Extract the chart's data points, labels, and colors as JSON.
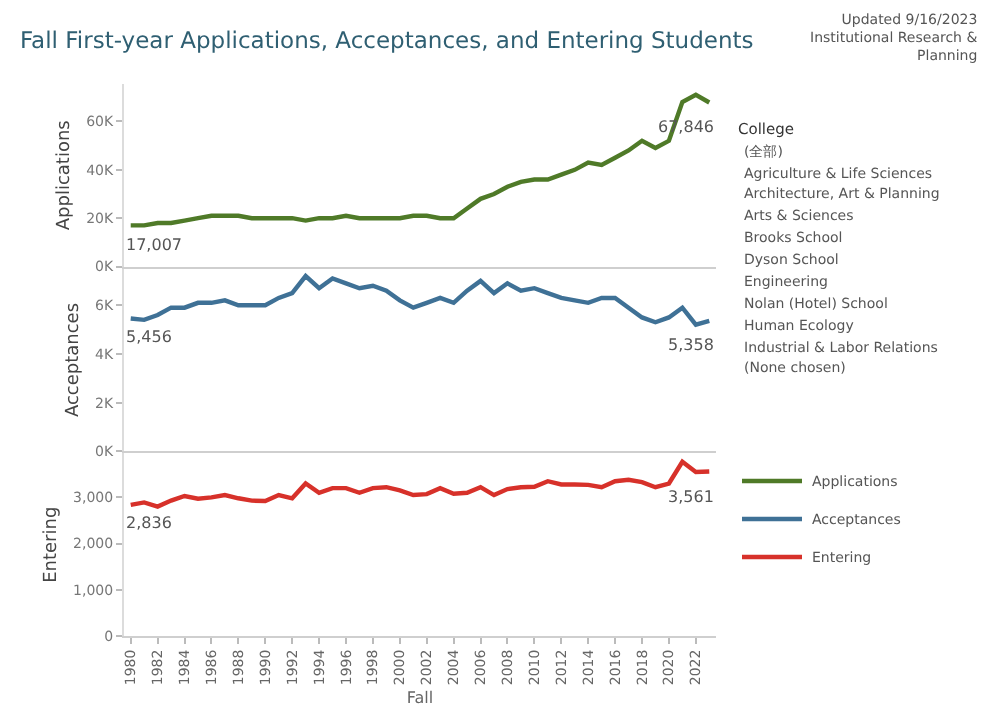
{
  "chart_data": [
    {
      "type": "line",
      "title": "Fall First-year Applications, Acceptances, and Entering Students",
      "ylabel": "Applications",
      "annotations": [
        "Updated 9/16/2023\nInstitutional Research &\nPlanning"
      ],
      "x": [
        1980,
        1981,
        1982,
        1983,
        1984,
        1985,
        1986,
        1987,
        1988,
        1989,
        1990,
        1991,
        1992,
        1993,
        1994,
        1995,
        1996,
        1997,
        1998,
        1999,
        2000,
        2001,
        2002,
        2003,
        2004,
        2005,
        2006,
        2007,
        2008,
        2009,
        2010,
        2011,
        2012,
        2013,
        2014,
        2015,
        2016,
        2017,
        2018,
        2019,
        2020,
        2021,
        2022,
        2023
      ],
      "xlim": [
        1979.5,
        2023.5
      ],
      "xticks": [
        1980,
        1982,
        1984,
        1986,
        1988,
        1990,
        1992,
        1994,
        1996,
        1998,
        2000,
        2002,
        2004,
        2006,
        2008,
        2010,
        2012,
        2014,
        2016,
        2018,
        2020,
        2022
      ],
      "ylim": [
        0,
        75500
      ],
      "yticks": [
        {
          "value": 0,
          "label": "0K"
        },
        {
          "value": 20000,
          "label": "20K"
        },
        {
          "value": 40000,
          "label": "40K"
        },
        {
          "value": 60000,
          "label": "60K"
        }
      ],
      "tick_labels": "y",
      "legend": "right",
      "series": [
        {
          "name": "Applications",
          "color": "#4f7a28",
          "values": [
            17007,
            17000,
            18000,
            18000,
            19000,
            20000,
            21000,
            21000,
            21000,
            20000,
            20000,
            20000,
            20000,
            19000,
            20000,
            20000,
            21000,
            20000,
            20000,
            20000,
            20000,
            21000,
            21000,
            20000,
            20000,
            24000,
            28000,
            30000,
            33000,
            35000,
            36000,
            36000,
            38000,
            40000,
            43000,
            42000,
            45000,
            48000,
            52000,
            49000,
            52000,
            68000,
            71000,
            67846
          ],
          "value_labels": [
            "17,007",
            null,
            null,
            null,
            null,
            null,
            null,
            null,
            null,
            null,
            null,
            null,
            null,
            null,
            null,
            null,
            null,
            null,
            null,
            null,
            null,
            null,
            null,
            null,
            null,
            null,
            null,
            null,
            null,
            null,
            null,
            null,
            null,
            null,
            null,
            null,
            null,
            null,
            null,
            null,
            null,
            null,
            null,
            "67,846"
          ]
        }
      ]
    },
    {
      "type": "line",
      "ylabel": "Acceptances",
      "x": [
        1980,
        1981,
        1982,
        1983,
        1984,
        1985,
        1986,
        1987,
        1988,
        1989,
        1990,
        1991,
        1992,
        1993,
        1994,
        1995,
        1996,
        1997,
        1998,
        1999,
        2000,
        2001,
        2002,
        2003,
        2004,
        2005,
        2006,
        2007,
        2008,
        2009,
        2010,
        2011,
        2012,
        2013,
        2014,
        2015,
        2016,
        2017,
        2018,
        2019,
        2020,
        2021,
        2022,
        2023
      ],
      "xlim": [
        1979.5,
        2023.5
      ],
      "xticks": [
        1980,
        1982,
        1984,
        1986,
        1988,
        1990,
        1992,
        1994,
        1996,
        1998,
        2000,
        2002,
        2004,
        2006,
        2008,
        2010,
        2012,
        2014,
        2016,
        2018,
        2020,
        2022
      ],
      "ylim": [
        0,
        7500
      ],
      "yticks": [
        {
          "value": 0,
          "label": "0K"
        },
        {
          "value": 2000,
          "label": "2K"
        },
        {
          "value": 4000,
          "label": "4K"
        },
        {
          "value": 6000,
          "label": "6K"
        }
      ],
      "tick_labels": "y",
      "legend": "right",
      "series": [
        {
          "name": "Acceptances",
          "color": "#3f7196",
          "values": [
            5456,
            5400,
            5600,
            5900,
            5900,
            6100,
            6100,
            6200,
            6000,
            6000,
            6000,
            6300,
            6500,
            7200,
            6700,
            7100,
            6900,
            6700,
            6800,
            6600,
            6200,
            5900,
            6100,
            6300,
            6100,
            6600,
            7000,
            6500,
            6900,
            6600,
            6700,
            6500,
            6300,
            6200,
            6100,
            6300,
            6300,
            5900,
            5500,
            5300,
            5500,
            5900,
            5200,
            5358
          ],
          "value_labels": [
            "5,456",
            null,
            null,
            null,
            null,
            null,
            null,
            null,
            null,
            null,
            null,
            null,
            null,
            null,
            null,
            null,
            null,
            null,
            null,
            null,
            null,
            null,
            null,
            null,
            null,
            null,
            null,
            null,
            null,
            null,
            null,
            null,
            null,
            null,
            null,
            null,
            null,
            null,
            null,
            null,
            null,
            null,
            null,
            "5,358"
          ]
        }
      ]
    },
    {
      "type": "line",
      "ylabel": "Entering",
      "xlabel": "Fall",
      "x": [
        1980,
        1981,
        1982,
        1983,
        1984,
        1985,
        1986,
        1987,
        1988,
        1989,
        1990,
        1991,
        1992,
        1993,
        1994,
        1995,
        1996,
        1997,
        1998,
        1999,
        2000,
        2001,
        2002,
        2003,
        2004,
        2005,
        2006,
        2007,
        2008,
        2009,
        2010,
        2011,
        2012,
        2013,
        2014,
        2015,
        2016,
        2017,
        2018,
        2019,
        2020,
        2021,
        2022,
        2023
      ],
      "xlim": [
        1979.5,
        2023.5
      ],
      "xticks": [
        1980,
        1982,
        1984,
        1986,
        1988,
        1990,
        1992,
        1994,
        1996,
        1998,
        2000,
        2002,
        2004,
        2006,
        2008,
        2010,
        2012,
        2014,
        2016,
        2018,
        2020,
        2022
      ],
      "ylim": [
        0,
        3950
      ],
      "yticks": [
        {
          "value": 0,
          "label": "0"
        },
        {
          "value": 1000,
          "label": "1,000"
        },
        {
          "value": 2000,
          "label": "2,000"
        },
        {
          "value": 3000,
          "label": "3,000"
        }
      ],
      "legend": "right",
      "series": [
        {
          "name": "Entering",
          "color": "#d7312a",
          "values": [
            2836,
            2890,
            2800,
            2930,
            3030,
            2970,
            3000,
            3050,
            2980,
            2930,
            2920,
            3050,
            2980,
            3300,
            3100,
            3200,
            3200,
            3100,
            3200,
            3220,
            3150,
            3050,
            3070,
            3200,
            3080,
            3100,
            3220,
            3050,
            3180,
            3220,
            3230,
            3350,
            3280,
            3280,
            3270,
            3220,
            3350,
            3380,
            3330,
            3220,
            3300,
            3770,
            3550,
            3561
          ],
          "value_labels": [
            "2,836",
            null,
            null,
            null,
            null,
            null,
            null,
            null,
            null,
            null,
            null,
            null,
            null,
            null,
            null,
            null,
            null,
            null,
            null,
            null,
            null,
            null,
            null,
            null,
            null,
            null,
            null,
            null,
            null,
            null,
            null,
            null,
            null,
            null,
            null,
            null,
            null,
            null,
            null,
            null,
            null,
            null,
            null,
            "3,561"
          ]
        }
      ]
    },
    {
      "type": "other",
      "title": "College",
      "annotations": [
        "(全部)",
        "Agriculture & Life Sciences",
        "Architecture, Art & Planning",
        "Arts & Sciences",
        "Brooks School",
        "Dyson School",
        "Engineering",
        "Nolan (Hotel) School",
        "Human Ecology",
        "Industrial & Labor Relations",
        "(None chosen)"
      ]
    }
  ]
}
